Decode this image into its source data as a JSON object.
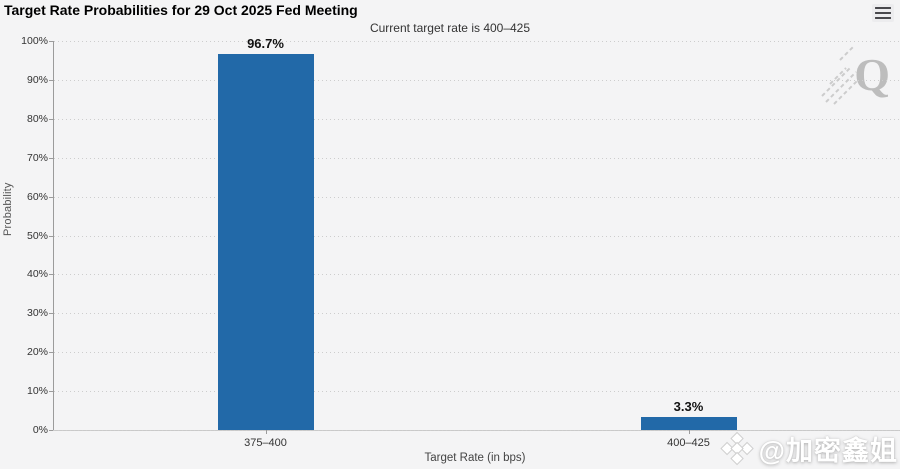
{
  "chart_data": {
    "type": "bar",
    "title": "Target Rate Probabilities for 29 Oct 2025 Fed Meeting",
    "subtitle": "Current target rate is 400–425",
    "categories": [
      "375–400",
      "400–425"
    ],
    "values": [
      96.7,
      3.3
    ],
    "value_labels": [
      "96.7%",
      "3.3%"
    ],
    "xlabel": "Target Rate (in bps)",
    "ylabel": "Probability",
    "ylim": [
      0,
      100
    ],
    "ytick_step": 10,
    "ytick_labels": [
      "0%",
      "10%",
      "20%",
      "30%",
      "40%",
      "50%",
      "60%",
      "70%",
      "80%",
      "90%",
      "100%"
    ],
    "grid": "horizontal-dotted",
    "legend_position": "none",
    "bar_color": "#2269a8",
    "background_color": "#f4f4f5"
  },
  "controls": {
    "menu_icon": "hamburger-menu"
  },
  "watermarks": {
    "corner_logo_letter": "Q",
    "bottom_logo_icon": "binance-diamond",
    "bottom_text": "@加密鑫姐"
  }
}
